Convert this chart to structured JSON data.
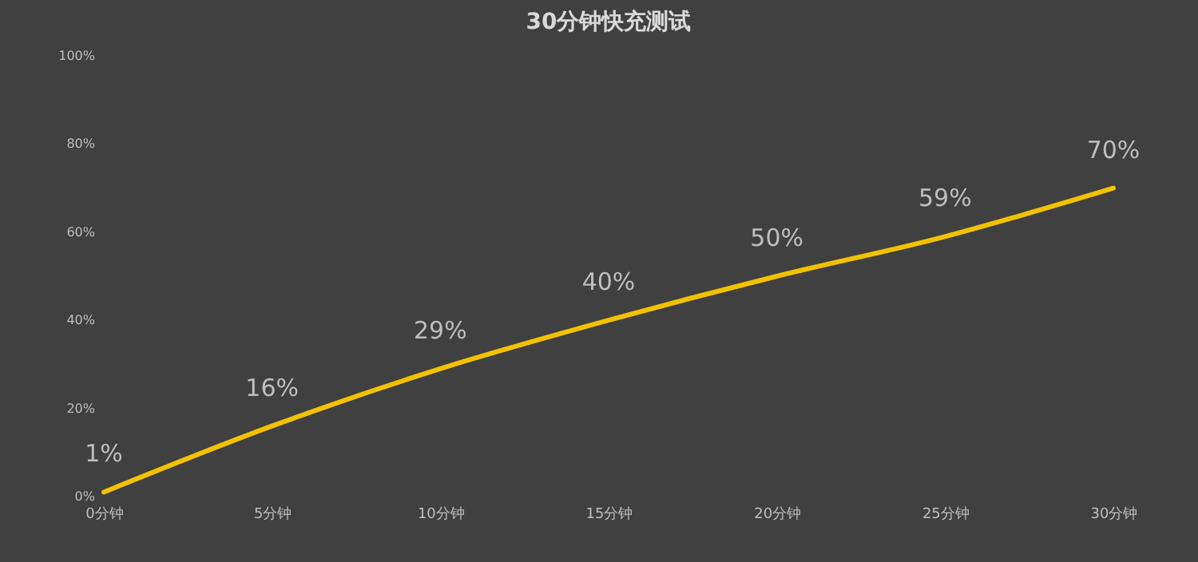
{
  "chart_data": {
    "type": "line",
    "title": "30分钟快充测试",
    "categories": [
      "0分钟",
      "5分钟",
      "10分钟",
      "15分钟",
      "20分钟",
      "25分钟",
      "30分钟"
    ],
    "series": [
      {
        "color": "#f2c200",
        "values": [
          1,
          16,
          29,
          40,
          50,
          59,
          70
        ],
        "value_labels": [
          "1%",
          "16%",
          "29%",
          "40%",
          "50%",
          "59%",
          "70%"
        ]
      }
    ],
    "ylim": [
      0,
      100
    ],
    "yticks": [
      {
        "value": 0,
        "label": "0%"
      },
      {
        "value": 20,
        "label": "20%"
      },
      {
        "value": 40,
        "label": "40%"
      },
      {
        "value": 60,
        "label": "60%"
      },
      {
        "value": 80,
        "label": "80%"
      },
      {
        "value": 100,
        "label": "100%"
      }
    ],
    "grid": false,
    "marker": "none",
    "line_style": "solid"
  }
}
